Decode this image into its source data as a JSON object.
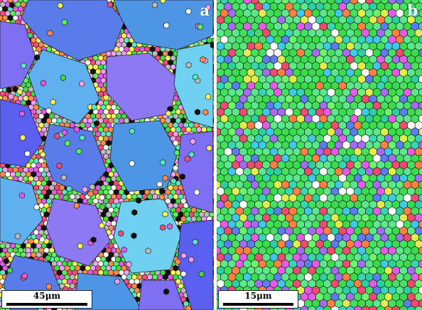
{
  "panels": [
    {
      "label": "a",
      "scale_bar": "45μm",
      "description_palette": [
        "#5a7ce8",
        "#4f95e6",
        "#7d6ef2",
        "#5fb0f0",
        "#8e79f5",
        "#6fd0f2",
        "#5a5ff0"
      ],
      "fine_grain_palette": [
        "#46d84a",
        "#f4f45a",
        "#ee4e7c",
        "#e25ae8",
        "#59e7c0",
        "#ffffff",
        "#ff8c4c",
        "#bbbbbb",
        "#111111",
        "#5af45a",
        "#f0a0f0"
      ]
    },
    {
      "label": "b",
      "scale_bar": "15μm",
      "fine_grain_palette": [
        "#46e060",
        "#3bdc4c",
        "#5ae88a",
        "#36d6b4",
        "#40c8e8",
        "#5c7df0",
        "#ee4c6e",
        "#e0ee4c",
        "#a46cf0",
        "#ff8040",
        "#ffffff",
        "#2ccfa0",
        "#6ef46a",
        "#e45ce6"
      ]
    }
  ]
}
